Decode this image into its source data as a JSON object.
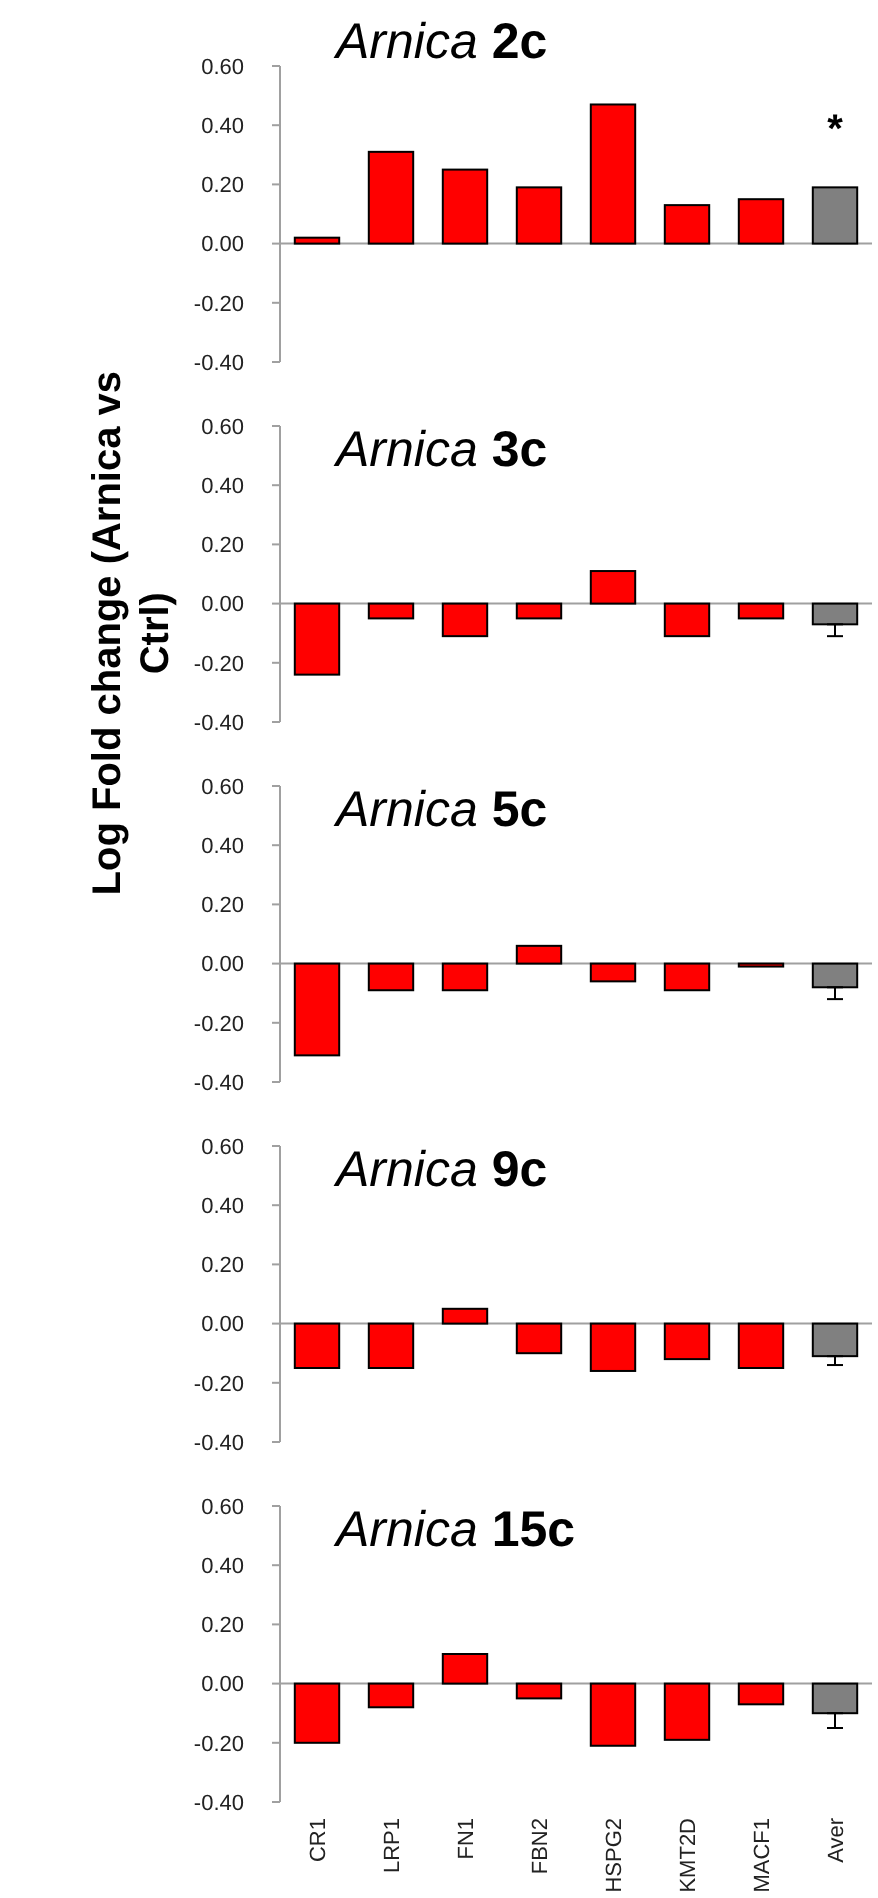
{
  "chart_data": [
    {
      "type": "bar",
      "title": "Arnica 2c",
      "categories": [
        null,
        null,
        null,
        null,
        null,
        null,
        null,
        null
      ],
      "values": [
        0.02,
        0.31,
        0.25,
        0.19,
        0.47,
        0.13,
        0.15,
        0.19
      ],
      "colors": [
        "#ff0000",
        "#ff0000",
        "#ff0000",
        "#ff0000",
        "#ff0000",
        "#ff0000",
        "#ff0000",
        "#808080"
      ],
      "annotations": [
        "*"
      ],
      "ylim": [
        -0.4,
        0.6
      ],
      "yticks": [
        {
          "value": -0.4,
          "label": "-0.40"
        },
        {
          "value": -0.2,
          "label": "-0.20"
        },
        {
          "value": 0,
          "label": "0.00"
        },
        {
          "value": 0.2,
          "label": "0.20"
        },
        {
          "value": 0.4,
          "label": "0.40"
        },
        {
          "value": 0.6,
          "label": "0.60"
        }
      ],
      "tick_labels": "y"
    },
    {
      "type": "bar",
      "title": "Arnica 3c",
      "ylabel": "Log Fold change (Arnica vs Ctrl)",
      "categories": [
        null,
        null,
        null,
        null,
        null,
        null,
        null,
        null
      ],
      "values": [
        -0.24,
        -0.05,
        -0.11,
        -0.05,
        0.11,
        -0.11,
        -0.05,
        -0.07
      ],
      "errors": [
        null,
        null,
        null,
        null,
        null,
        null,
        null,
        [
          -0.11,
          -0.07
        ]
      ],
      "colors": [
        "#ff0000",
        "#ff0000",
        "#ff0000",
        "#ff0000",
        "#ff0000",
        "#ff0000",
        "#ff0000",
        "#808080"
      ],
      "ylim": [
        -0.4,
        0.6
      ],
      "yticks": [
        {
          "value": -0.4,
          "label": "-0.40"
        },
        {
          "value": -0.2,
          "label": "-0.20"
        },
        {
          "value": 0,
          "label": "0.00"
        },
        {
          "value": 0.2,
          "label": "0.20"
        },
        {
          "value": 0.4,
          "label": "0.40"
        },
        {
          "value": 0.6,
          "label": "0.60"
        }
      ],
      "tick_labels": "y"
    },
    {
      "type": "bar",
      "title": "Arnica 5c",
      "categories": [
        null,
        null,
        null,
        null,
        null,
        null,
        null,
        null
      ],
      "values": [
        -0.31,
        -0.09,
        -0.09,
        0.06,
        -0.06,
        -0.09,
        -0.01,
        -0.08
      ],
      "errors": [
        null,
        null,
        null,
        null,
        null,
        null,
        null,
        [
          -0.12,
          -0.08
        ]
      ],
      "colors": [
        "#ff0000",
        "#ff0000",
        "#ff0000",
        "#ff0000",
        "#ff0000",
        "#ff0000",
        "#ff0000",
        "#808080"
      ],
      "ylim": [
        -0.4,
        0.6
      ],
      "yticks": [
        {
          "value": -0.4,
          "label": "-0.40"
        },
        {
          "value": -0.2,
          "label": "-0.20"
        },
        {
          "value": 0,
          "label": "0.00"
        },
        {
          "value": 0.2,
          "label": "0.20"
        },
        {
          "value": 0.4,
          "label": "0.40"
        },
        {
          "value": 0.6,
          "label": "0.60"
        }
      ],
      "tick_labels": "y"
    },
    {
      "type": "bar",
      "title": "Arnica 9c",
      "categories": [
        null,
        null,
        null,
        null,
        null,
        null,
        null,
        null
      ],
      "values": [
        -0.15,
        -0.15,
        0.05,
        -0.1,
        -0.16,
        -0.12,
        -0.15,
        -0.11
      ],
      "errors": [
        null,
        null,
        null,
        null,
        null,
        null,
        null,
        [
          -0.14,
          -0.11
        ]
      ],
      "colors": [
        "#ff0000",
        "#ff0000",
        "#ff0000",
        "#ff0000",
        "#ff0000",
        "#ff0000",
        "#ff0000",
        "#808080"
      ],
      "ylim": [
        -0.4,
        0.6
      ],
      "yticks": [
        {
          "value": -0.4,
          "label": "-0.40"
        },
        {
          "value": -0.2,
          "label": "-0.20"
        },
        {
          "value": 0,
          "label": "0.00"
        },
        {
          "value": 0.2,
          "label": "0.20"
        },
        {
          "value": 0.4,
          "label": "0.40"
        },
        {
          "value": 0.6,
          "label": "0.60"
        }
      ],
      "tick_labels": "y"
    },
    {
      "type": "bar",
      "title": "Arnica 15c",
      "categories": [
        "CR1",
        "LRP1",
        "FN1",
        "FBN2",
        "HSPG2",
        "KMT2D",
        "MACF1",
        "Aver"
      ],
      "values": [
        -0.2,
        -0.08,
        0.1,
        -0.05,
        -0.21,
        -0.19,
        -0.07,
        -0.1
      ],
      "errors": [
        null,
        null,
        null,
        null,
        null,
        null,
        null,
        [
          -0.15,
          -0.1
        ]
      ],
      "colors": [
        "#ff0000",
        "#ff0000",
        "#ff0000",
        "#ff0000",
        "#ff0000",
        "#ff0000",
        "#ff0000",
        "#808080"
      ],
      "ylim": [
        -0.4,
        0.6
      ],
      "yticks": [
        {
          "value": -0.4,
          "label": "-0.40"
        },
        {
          "value": -0.2,
          "label": "-0.20"
        },
        {
          "value": 0,
          "label": "0.00"
        },
        {
          "value": 0.2,
          "label": "0.20"
        },
        {
          "value": 0.4,
          "label": "0.40"
        },
        {
          "value": 0.6,
          "label": "0.60"
        }
      ]
    }
  ]
}
